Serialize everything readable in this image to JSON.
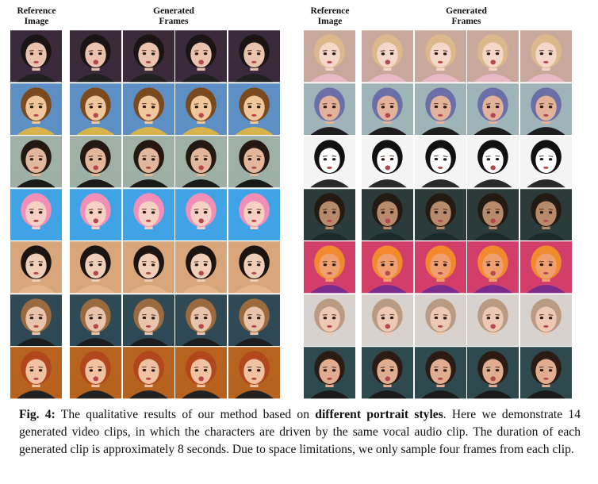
{
  "headers": {
    "left_reference": [
      "Reference",
      "Image"
    ],
    "left_generated": [
      "Generated",
      "Frames"
    ],
    "right_reference": [
      "Reference",
      "Image"
    ],
    "right_generated": [
      "Generated",
      "Frames"
    ]
  },
  "caption": {
    "label": "Fig. 4:",
    "text_before": " The qualitative results of our method based on ",
    "emphasis": "different portrait styles",
    "text_after": ". Here we demonstrate 14 generated video clips, in which the characters are driven by the same vocal audio clip. The duration of each generated clip is approximately 8 seconds. Due to space limitations, we only sample four frames from each clip."
  },
  "left_rows": [
    {
      "subject": "realistic-woman-black-hair",
      "bg": "#3b2a3a",
      "skin": "#e9c3ad",
      "hair": "#1b1414",
      "cloth": "#202020"
    },
    {
      "subject": "cartoon-cowboy-woody",
      "bg": "#5d8fc4",
      "skin": "#f0c79d",
      "hair": "#7a4a1e",
      "cloth": "#d8b24a"
    },
    {
      "subject": "realistic-woman-short-dark-hair",
      "bg": "#9fb0a6",
      "skin": "#e3b79c",
      "hair": "#231812",
      "cloth": "#1a1a1a"
    },
    {
      "subject": "anime-rainbow-hair-girl",
      "bg": "#3fa3e6",
      "skin": "#f5d0c3",
      "hair": "#f28fb8",
      "cloth": "#3fa3e6"
    },
    {
      "subject": "traditional-chinese-woman",
      "bg": "#d9a57a",
      "skin": "#f0cfb8",
      "hair": "#1c1410",
      "cloth": "#e6b48a"
    },
    {
      "subject": "realistic-woman-wavy-hair",
      "bg": "#2f4a55",
      "skin": "#e8c4ac",
      "hair": "#9b6a3f",
      "cloth": "#1d1d1d"
    },
    {
      "subject": "realistic-woman-red-hair",
      "bg": "#b5631f",
      "skin": "#f0c2a2",
      "hair": "#b2461c",
      "cloth": "#222"
    }
  ],
  "right_rows": [
    {
      "subject": "anime-blonde-girl",
      "bg": "#c9a99c",
      "skin": "#f4d7c8",
      "hair": "#dcb98c",
      "cloth": "#e8b9c4"
    },
    {
      "subject": "3d-purple-short-hair",
      "bg": "#9fb4b8",
      "skin": "#e2b39a",
      "hair": "#6a6fa8",
      "cloth": "#1e1e1e"
    },
    {
      "subject": "manga-lineart-man",
      "bg": "#f4f4f4",
      "skin": "#ffffff",
      "hair": "#111111",
      "cloth": "#2a2a2a"
    },
    {
      "subject": "realistic-man-suit",
      "bg": "#2c3a3a",
      "skin": "#b88a6c",
      "hair": "#241a14",
      "cloth": "#1d2a2c"
    },
    {
      "subject": "painted-orange-hair-woman",
      "bg": "#d23e6a",
      "skin": "#f0a070",
      "hair": "#f08a2c",
      "cloth": "#7a2c8c"
    },
    {
      "subject": "3d-woman-light-hair",
      "bg": "#d8d2cf",
      "skin": "#edc9b3",
      "hair": "#b99a82",
      "cloth": "#d8d2cf"
    },
    {
      "subject": "3d-woman-bun-hair",
      "bg": "#2f4a4f",
      "skin": "#e0ad90",
      "hair": "#2a1c15",
      "cloth": "#1a1a1a"
    }
  ]
}
